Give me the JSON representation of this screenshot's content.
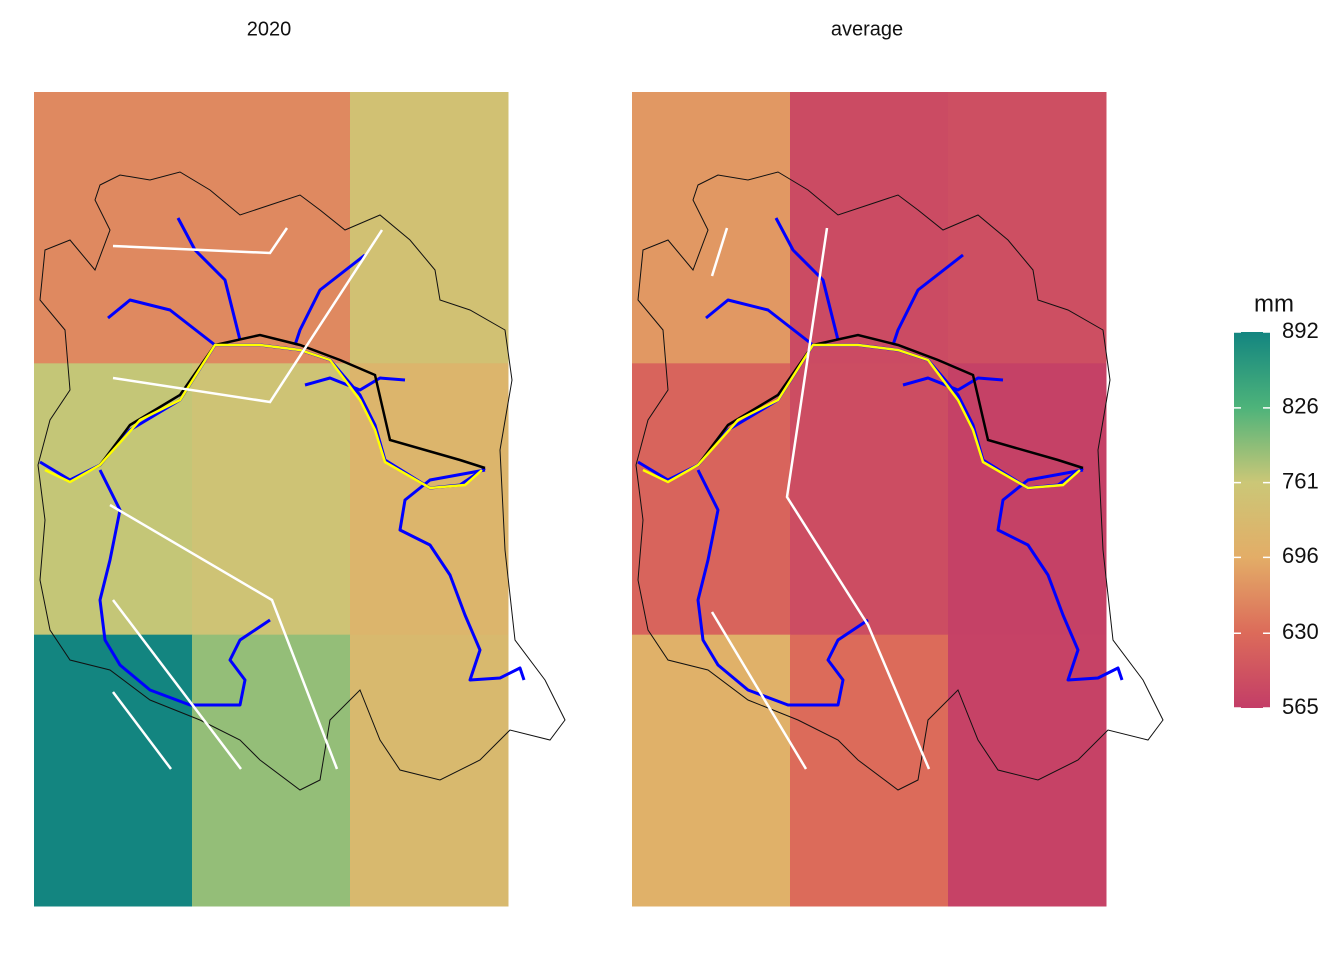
{
  "chart_data": {
    "type": "heatmap",
    "panels": [
      {
        "title": "2020",
        "values": [
          [
            660,
            660,
            745
          ],
          [
            765,
            752,
            715
          ],
          [
            892,
            790,
            725
          ]
        ]
      },
      {
        "title": "average",
        "values": [
          [
            675,
            585,
            590
          ],
          [
            620,
            588,
            570
          ],
          [
            705,
            630,
            572
          ]
        ]
      }
    ],
    "colorbar": {
      "title": "mm",
      "clim": [
        565,
        892
      ],
      "ticks": [
        565,
        630,
        696,
        761,
        826,
        892
      ],
      "colors": [
        "#c33d67",
        "#dc6b5a",
        "#e3ad67",
        "#cbc777",
        "#4db37a",
        "#138580"
      ]
    }
  }
}
